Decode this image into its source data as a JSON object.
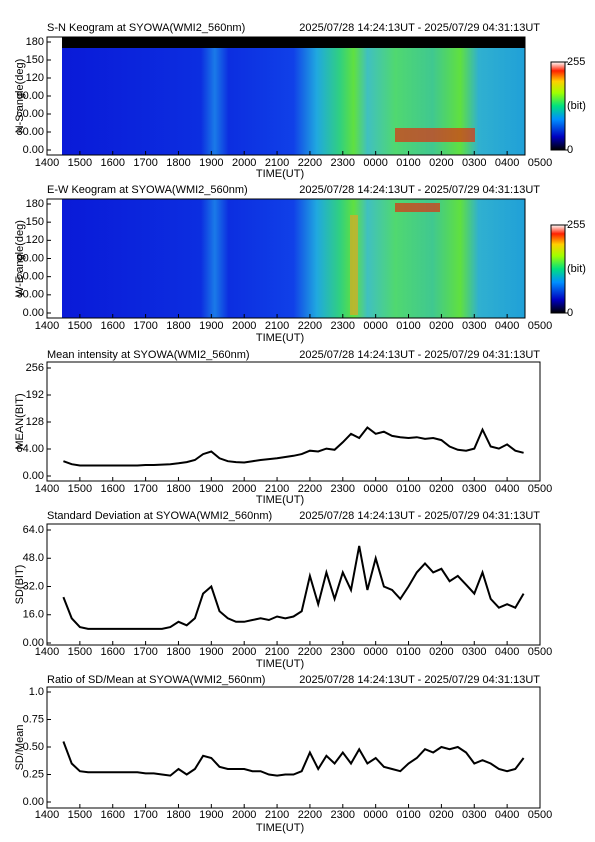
{
  "chart_data": [
    {
      "type": "keogram",
      "title": "S-N Keogram at SYOWA(WMI2_560nm)",
      "time_range": "2025/07/28 14:24:13UT - 2025/07/29 04:31:13UT",
      "ylabel": "N-S angle(deg)",
      "xlabel": "TIME(UT)",
      "xlim": [
        14,
        29
      ],
      "ylim": [
        0,
        180
      ],
      "xticks": [
        {
          "value": 14,
          "label": "1400"
        },
        {
          "value": 15,
          "label": "1500"
        },
        {
          "value": 16,
          "label": "1600"
        },
        {
          "value": 17,
          "label": "1700"
        },
        {
          "value": 18,
          "label": "1800"
        },
        {
          "value": 19,
          "label": "1900"
        },
        {
          "value": 20,
          "label": "2000"
        },
        {
          "value": 21,
          "label": "2100"
        },
        {
          "value": 22,
          "label": "2200"
        },
        {
          "value": 23,
          "label": "2300"
        },
        {
          "value": 24,
          "label": "0000"
        },
        {
          "value": 25,
          "label": "0100"
        },
        {
          "value": 26,
          "label": "0200"
        },
        {
          "value": 27,
          "label": "0300"
        },
        {
          "value": 28,
          "label": "0400"
        },
        {
          "value": 29,
          "label": "0500"
        }
      ],
      "yticks": [
        {
          "value": 0,
          "label": "0.00"
        },
        {
          "value": 30,
          "label": "30.00"
        },
        {
          "value": 60,
          "label": "60.00"
        },
        {
          "value": 90,
          "label": "90.00"
        },
        120,
        150,
        180
      ],
      "colorbar_ticks": [
        0,
        255
      ],
      "colorbar_label": "(bit)"
    },
    {
      "type": "keogram",
      "title": "E-W Keogram at SYOWA(WMI2_560nm)",
      "time_range": "2025/07/28 14:24:13UT - 2025/07/29 04:31:13UT",
      "ylabel": "W-E angle(deg)",
      "xlabel": "TIME(UT)",
      "xlim": [
        14,
        29
      ],
      "ylim": [
        0,
        180
      ],
      "xticks": [
        {
          "value": 14,
          "label": "1400"
        },
        {
          "value": 15,
          "label": "1500"
        },
        {
          "value": 16,
          "label": "1600"
        },
        {
          "value": 17,
          "label": "1700"
        },
        {
          "value": 18,
          "label": "1800"
        },
        {
          "value": 19,
          "label": "1900"
        },
        {
          "value": 20,
          "label": "2000"
        },
        {
          "value": 21,
          "label": "2100"
        },
        {
          "value": 22,
          "label": "2200"
        },
        {
          "value": 23,
          "label": "2300"
        },
        {
          "value": 24,
          "label": "0000"
        },
        {
          "value": 25,
          "label": "0100"
        },
        {
          "value": 26,
          "label": "0200"
        },
        {
          "value": 27,
          "label": "0300"
        },
        {
          "value": 28,
          "label": "0400"
        },
        {
          "value": 29,
          "label": "0500"
        }
      ],
      "yticks": [
        {
          "value": 0,
          "label": "0.00"
        },
        {
          "value": 30,
          "label": "30.00"
        },
        {
          "value": 60,
          "label": "60.00"
        },
        {
          "value": 90,
          "label": "90.00"
        },
        120,
        150,
        180
      ],
      "colorbar_ticks": [
        0,
        255
      ],
      "colorbar_label": "(bit)"
    },
    {
      "type": "line",
      "title": "Mean intensity at SYOWA(WMI2_560nm)",
      "time_range": "2025/07/28 14:24:13UT - 2025/07/29 04:31:13UT",
      "ylabel": "MEAN(BIT)",
      "xlabel": "TIME(UT)",
      "xlim": [
        14,
        29
      ],
      "ylim": [
        0,
        256
      ],
      "color": "#000000",
      "xticks": [
        {
          "value": 14,
          "label": "1400"
        },
        {
          "value": 15,
          "label": "1500"
        },
        {
          "value": 16,
          "label": "1600"
        },
        {
          "value": 17,
          "label": "1700"
        },
        {
          "value": 18,
          "label": "1800"
        },
        {
          "value": 19,
          "label": "1900"
        },
        {
          "value": 20,
          "label": "2000"
        },
        {
          "value": 21,
          "label": "2100"
        },
        {
          "value": 22,
          "label": "2200"
        },
        {
          "value": 23,
          "label": "2300"
        },
        {
          "value": 24,
          "label": "0000"
        },
        {
          "value": 25,
          "label": "0100"
        },
        {
          "value": 26,
          "label": "0200"
        },
        {
          "value": 27,
          "label": "0300"
        },
        {
          "value": 28,
          "label": "0400"
        },
        {
          "value": 29,
          "label": "0500"
        }
      ],
      "yticks": [
        {
          "value": 0,
          "label": "0.00"
        },
        {
          "value": 64,
          "label": "64.00"
        },
        128,
        192,
        256
      ],
      "x": [
        14.5,
        14.75,
        15,
        15.25,
        15.5,
        15.75,
        16,
        16.25,
        16.5,
        16.75,
        17,
        17.25,
        17.5,
        17.75,
        18,
        18.25,
        18.5,
        18.75,
        19,
        19.25,
        19.5,
        19.75,
        20,
        20.25,
        20.5,
        20.75,
        21,
        21.25,
        21.5,
        21.75,
        22,
        22.25,
        22.5,
        22.75,
        23,
        23.25,
        23.5,
        23.75,
        24,
        24.25,
        24.5,
        24.75,
        25,
        25.25,
        25.5,
        25.75,
        26,
        26.25,
        26.5,
        26.75,
        27,
        27.25,
        27.5,
        27.75,
        28,
        28.25,
        28.5
      ],
      "values": [
        35,
        28,
        25,
        25,
        25,
        25,
        25,
        25,
        25,
        25,
        26,
        26,
        27,
        28,
        30,
        33,
        38,
        52,
        58,
        42,
        35,
        33,
        32,
        35,
        38,
        40,
        42,
        45,
        48,
        52,
        60,
        58,
        65,
        62,
        80,
        100,
        90,
        115,
        100,
        105,
        95,
        92,
        90,
        92,
        88,
        90,
        85,
        70,
        62,
        60,
        65,
        110,
        70,
        65,
        75,
        60,
        55
      ]
    },
    {
      "type": "line",
      "title": "Standard Deviation at SYOWA(WMI2_560nm)",
      "time_range": "2025/07/28 14:24:13UT - 2025/07/29 04:31:13UT",
      "ylabel": "SD(BIT)",
      "xlabel": "TIME(UT)",
      "xlim": [
        14,
        29
      ],
      "ylim": [
        0,
        64
      ],
      "color": "#000000",
      "xticks": [
        {
          "value": 14,
          "label": "1400"
        },
        {
          "value": 15,
          "label": "1500"
        },
        {
          "value": 16,
          "label": "1600"
        },
        {
          "value": 17,
          "label": "1700"
        },
        {
          "value": 18,
          "label": "1800"
        },
        {
          "value": 19,
          "label": "1900"
        },
        {
          "value": 20,
          "label": "2000"
        },
        {
          "value": 21,
          "label": "2100"
        },
        {
          "value": 22,
          "label": "2200"
        },
        {
          "value": 23,
          "label": "2300"
        },
        {
          "value": 24,
          "label": "0000"
        },
        {
          "value": 25,
          "label": "0100"
        },
        {
          "value": 26,
          "label": "0200"
        },
        {
          "value": 27,
          "label": "0300"
        },
        {
          "value": 28,
          "label": "0400"
        },
        {
          "value": 29,
          "label": "0500"
        }
      ],
      "yticks": [
        {
          "value": 0,
          "label": "0.00"
        },
        {
          "value": 16,
          "label": "16.0"
        },
        {
          "value": 32,
          "label": "32.0"
        },
        {
          "value": 48,
          "label": "48.0"
        },
        {
          "value": 64,
          "label": "64.0"
        }
      ],
      "x": [
        14.5,
        14.75,
        15,
        15.25,
        15.5,
        15.75,
        16,
        16.25,
        16.5,
        16.75,
        17,
        17.25,
        17.5,
        17.75,
        18,
        18.25,
        18.5,
        18.75,
        19,
        19.25,
        19.5,
        19.75,
        20,
        20.25,
        20.5,
        20.75,
        21,
        21.25,
        21.5,
        21.75,
        22,
        22.25,
        22.5,
        22.75,
        23,
        23.25,
        23.5,
        23.75,
        24,
        24.25,
        24.5,
        24.75,
        25,
        25.25,
        25.5,
        25.75,
        26,
        26.25,
        26.5,
        26.75,
        27,
        27.25,
        27.5,
        27.75,
        28,
        28.25,
        28.5
      ],
      "values": [
        26,
        14,
        9,
        8,
        8,
        8,
        8,
        8,
        8,
        8,
        8,
        8,
        8,
        9,
        12,
        10,
        14,
        28,
        32,
        18,
        14,
        12,
        12,
        13,
        14,
        13,
        15,
        14,
        15,
        18,
        38,
        22,
        40,
        25,
        40,
        30,
        55,
        30,
        48,
        32,
        30,
        25,
        32,
        40,
        45,
        40,
        42,
        35,
        38,
        33,
        28,
        40,
        25,
        20,
        22,
        20,
        28
      ]
    },
    {
      "type": "line",
      "title": "Ratio of SD/Mean at SYOWA(WMI2_560nm)",
      "time_range": "2025/07/28 14:24:13UT - 2025/07/29 04:31:13UT",
      "ylabel": "SD/Mean",
      "xlabel": "TIME(UT)",
      "xlim": [
        14,
        29
      ],
      "ylim": [
        0,
        1
      ],
      "color": "#000000",
      "xticks": [
        {
          "value": 14,
          "label": "1400"
        },
        {
          "value": 15,
          "label": "1500"
        },
        {
          "value": 16,
          "label": "1600"
        },
        {
          "value": 17,
          "label": "1700"
        },
        {
          "value": 18,
          "label": "1800"
        },
        {
          "value": 19,
          "label": "1900"
        },
        {
          "value": 20,
          "label": "2000"
        },
        {
          "value": 21,
          "label": "2100"
        },
        {
          "value": 22,
          "label": "2200"
        },
        {
          "value": 23,
          "label": "2300"
        },
        {
          "value": 24,
          "label": "0000"
        },
        {
          "value": 25,
          "label": "0100"
        },
        {
          "value": 26,
          "label": "0200"
        },
        {
          "value": 27,
          "label": "0300"
        },
        {
          "value": 28,
          "label": "0400"
        },
        {
          "value": 29,
          "label": "0500"
        }
      ],
      "yticks": [
        {
          "value": 0,
          "label": "0.00"
        },
        0.25,
        {
          "value": 0.5,
          "label": "0.50"
        },
        0.75,
        {
          "value": 1,
          "label": "1.0"
        }
      ],
      "x": [
        14.5,
        14.75,
        15,
        15.25,
        15.5,
        15.75,
        16,
        16.25,
        16.5,
        16.75,
        17,
        17.25,
        17.5,
        17.75,
        18,
        18.25,
        18.5,
        18.75,
        19,
        19.25,
        19.5,
        19.75,
        20,
        20.25,
        20.5,
        20.75,
        21,
        21.25,
        21.5,
        21.75,
        22,
        22.25,
        22.5,
        22.75,
        23,
        23.25,
        23.5,
        23.75,
        24,
        24.25,
        24.5,
        24.75,
        25,
        25.25,
        25.5,
        25.75,
        26,
        26.25,
        26.5,
        26.75,
        27,
        27.25,
        27.5,
        27.75,
        28,
        28.25,
        28.5
      ],
      "values": [
        0.55,
        0.35,
        0.28,
        0.27,
        0.27,
        0.27,
        0.27,
        0.27,
        0.27,
        0.27,
        0.26,
        0.26,
        0.25,
        0.24,
        0.3,
        0.25,
        0.3,
        0.42,
        0.4,
        0.32,
        0.3,
        0.3,
        0.3,
        0.28,
        0.28,
        0.25,
        0.24,
        0.25,
        0.25,
        0.28,
        0.45,
        0.3,
        0.42,
        0.35,
        0.45,
        0.35,
        0.48,
        0.35,
        0.4,
        0.32,
        0.3,
        0.28,
        0.35,
        0.4,
        0.48,
        0.45,
        0.5,
        0.48,
        0.5,
        0.45,
        0.35,
        0.38,
        0.35,
        0.3,
        0.28,
        0.3,
        0.4
      ]
    }
  ]
}
